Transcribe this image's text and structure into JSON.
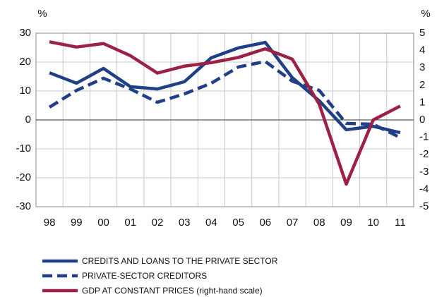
{
  "chart_data": {
    "type": "line",
    "ylabel": "%",
    "y2label": "%",
    "categories": [
      "98",
      "99",
      "00",
      "01",
      "02",
      "03",
      "04",
      "05",
      "06",
      "07",
      "08",
      "09",
      "10",
      "11"
    ],
    "series": [
      {
        "name": "CREDITS AND LOANS TO THE PRIVATE SECTOR",
        "color": "#1f3f87",
        "dashed": false,
        "values": [
          16.3,
          12.7,
          17.8,
          11.5,
          10.7,
          13.2,
          21.5,
          24.9,
          26.8,
          14.6,
          6.6,
          -3.4,
          -2.2,
          -4.4
        ]
      },
      {
        "name": "PRIVATE-SECTOR CREDITORS",
        "color": "#1f3f87",
        "dashed": true,
        "values": [
          4.4,
          10.2,
          14.4,
          10.7,
          6.1,
          9.0,
          12.7,
          18.3,
          20.2,
          13.4,
          10.2,
          -1.2,
          -1.5,
          -6.1
        ]
      },
      {
        "name": "GDP AT CONSTANT PRICES (right-hand scale)",
        "color": "#9b2242",
        "dashed": false,
        "axis": "y2",
        "values": [
          4.5,
          4.2,
          4.4,
          3.7,
          2.7,
          3.1,
          3.3,
          3.6,
          4.1,
          3.5,
          0.9,
          -3.7,
          0.0,
          0.8
        ]
      }
    ],
    "ylim": [
      -30,
      30
    ],
    "yticks": [
      -30,
      -20,
      -10,
      0,
      10,
      20,
      30
    ],
    "y2lim": [
      -5,
      5
    ],
    "y2ticks": [
      -5,
      -4,
      -3,
      -2,
      -1,
      0,
      1,
      2,
      3,
      4,
      5
    ],
    "grid": true
  }
}
